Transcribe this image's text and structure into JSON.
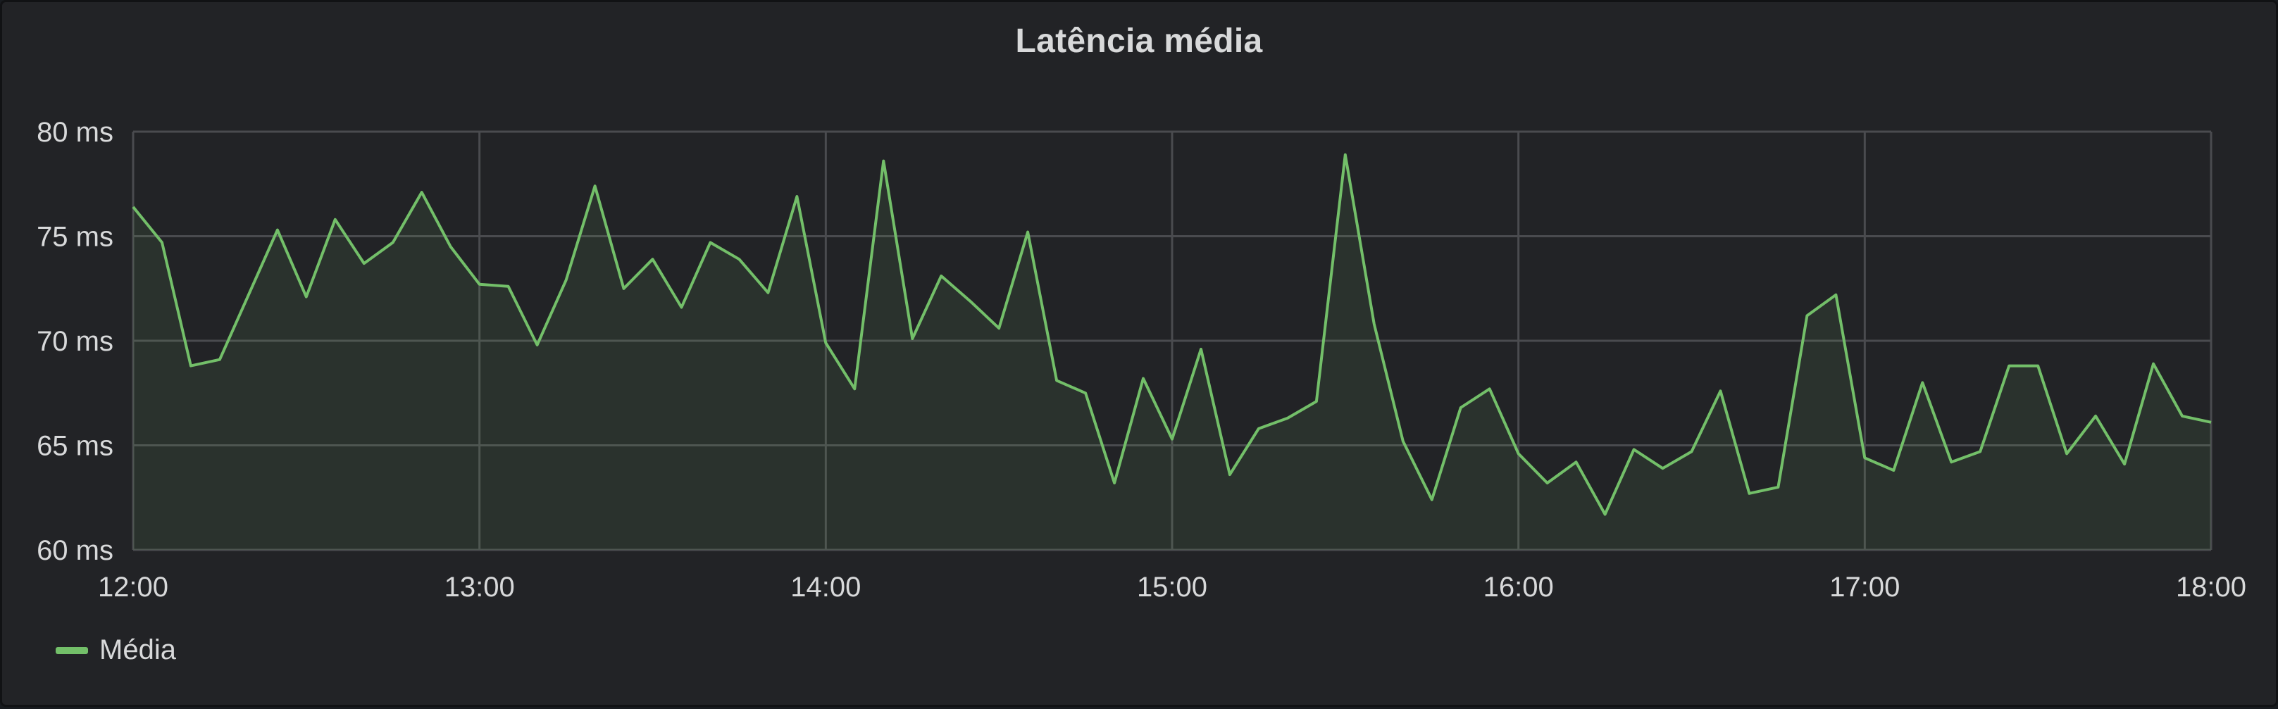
{
  "chart_data": {
    "type": "area",
    "title": "Latência média",
    "xlabel": "",
    "ylabel": "",
    "x_ticks": [
      "12:00",
      "13:00",
      "14:00",
      "15:00",
      "16:00",
      "17:00",
      "18:00"
    ],
    "y_ticks": [
      "80 ms",
      "75 ms",
      "70 ms",
      "65 ms",
      "60 ms"
    ],
    "xlim": [
      "12:00",
      "18:00"
    ],
    "ylim": [
      60,
      80
    ],
    "grid": true,
    "legend_position": "bottom-left",
    "series": [
      {
        "name": "Média",
        "color": "#73bf69",
        "x": [
          "12:00",
          "12:05",
          "12:10",
          "12:15",
          "12:20",
          "12:25",
          "12:30",
          "12:35",
          "12:40",
          "12:45",
          "12:50",
          "12:55",
          "13:00",
          "13:05",
          "13:10",
          "13:15",
          "13:20",
          "13:25",
          "13:30",
          "13:35",
          "13:40",
          "13:45",
          "13:50",
          "13:55",
          "14:00",
          "14:05",
          "14:10",
          "14:15",
          "14:20",
          "14:25",
          "14:30",
          "14:35",
          "14:40",
          "14:45",
          "14:50",
          "14:55",
          "15:00",
          "15:05",
          "15:10",
          "15:15",
          "15:20",
          "15:25",
          "15:30",
          "15:35",
          "15:40",
          "15:45",
          "15:50",
          "15:55",
          "16:00",
          "16:05",
          "16:10",
          "16:15",
          "16:20",
          "16:25",
          "16:30",
          "16:35",
          "16:40",
          "16:45",
          "16:50",
          "16:55",
          "17:00",
          "17:05",
          "17:10",
          "17:15",
          "17:20",
          "17:25",
          "17:30",
          "17:35",
          "17:40",
          "17:45",
          "17:50",
          "17:55",
          "18:00"
        ],
        "values": [
          76.4,
          74.7,
          68.8,
          69.1,
          72.2,
          75.3,
          72.1,
          75.8,
          73.7,
          74.7,
          77.1,
          74.5,
          72.7,
          72.6,
          69.8,
          72.9,
          77.4,
          72.5,
          73.9,
          71.6,
          74.7,
          73.9,
          72.3,
          76.9,
          69.9,
          67.7,
          78.6,
          70.1,
          73.1,
          71.9,
          70.6,
          75.2,
          68.1,
          67.5,
          63.2,
          68.2,
          65.3,
          69.6,
          63.6,
          65.8,
          66.3,
          67.1,
          78.9,
          70.8,
          65.2,
          62.4,
          66.8,
          67.7,
          64.6,
          63.2,
          64.2,
          61.7,
          64.8,
          63.9,
          64.7,
          67.6,
          62.7,
          63.0,
          71.2,
          72.2,
          64.4,
          63.8,
          68.0,
          64.2,
          64.7,
          68.8,
          68.8,
          64.6,
          66.4,
          64.1,
          68.9,
          66.4,
          66.1
        ]
      }
    ]
  }
}
